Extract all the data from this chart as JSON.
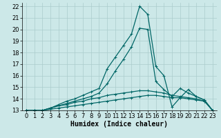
{
  "xlabel": "Humidex (Indice chaleur)",
  "background_color": "#cce8e8",
  "grid_color": "#aacccc",
  "line_color": "#006666",
  "xlim": [
    -0.5,
    23.5
  ],
  "ylim": [
    13,
    22.3
  ],
  "yticks": [
    13,
    14,
    15,
    16,
    17,
    18,
    19,
    20,
    21,
    22
  ],
  "xticks": [
    0,
    1,
    2,
    3,
    4,
    5,
    6,
    7,
    8,
    9,
    10,
    11,
    12,
    13,
    14,
    15,
    16,
    17,
    18,
    19,
    20,
    21,
    22,
    23
  ],
  "curves": [
    {
      "x": [
        0,
        1,
        2,
        3,
        4,
        5,
        6,
        7,
        8,
        9,
        10,
        11,
        12,
        13,
        14,
        15,
        16,
        17,
        18,
        19,
        20,
        21,
        22,
        23
      ],
      "y": [
        13,
        13,
        13,
        13.1,
        13.2,
        13.3,
        13.4,
        13.5,
        13.6,
        13.7,
        13.8,
        13.9,
        14.0,
        14.1,
        14.2,
        14.3,
        14.3,
        14.2,
        14.1,
        14.1,
        14.0,
        13.9,
        13.8,
        13.0
      ]
    },
    {
      "x": [
        0,
        1,
        2,
        3,
        4,
        5,
        6,
        7,
        8,
        9,
        10,
        11,
        12,
        13,
        14,
        15,
        16,
        17,
        18,
        19,
        20,
        21,
        22,
        23
      ],
      "y": [
        13,
        13,
        13,
        13.2,
        13.4,
        13.5,
        13.7,
        13.8,
        14.0,
        14.1,
        14.3,
        14.4,
        14.5,
        14.6,
        14.7,
        14.7,
        14.6,
        14.5,
        14.3,
        14.2,
        14.1,
        14.0,
        13.8,
        13.0
      ]
    },
    {
      "x": [
        0,
        1,
        2,
        3,
        4,
        5,
        6,
        7,
        8,
        9,
        10,
        11,
        12,
        13,
        14,
        15,
        16,
        17,
        18,
        19,
        20,
        21,
        22,
        23
      ],
      "y": [
        13,
        13,
        13,
        13.2,
        13.4,
        13.6,
        13.8,
        14.0,
        14.2,
        14.5,
        15.3,
        16.4,
        17.4,
        18.5,
        20.1,
        20.0,
        15.5,
        14.8,
        14.2,
        14.9,
        14.5,
        14.2,
        13.9,
        13.0
      ]
    },
    {
      "x": [
        0,
        1,
        2,
        3,
        4,
        5,
        6,
        7,
        8,
        9,
        10,
        11,
        12,
        13,
        14,
        15,
        16,
        17,
        18,
        19,
        20,
        21,
        22,
        23
      ],
      "y": [
        13,
        13,
        13,
        13.2,
        13.5,
        13.8,
        14.0,
        14.3,
        14.6,
        14.9,
        16.6,
        17.6,
        18.6,
        19.6,
        22.0,
        21.3,
        16.8,
        16.0,
        13.3,
        14.1,
        14.8,
        14.2,
        13.9,
        13.0
      ]
    }
  ],
  "marker": "+",
  "markersize": 3,
  "linewidth": 0.9,
  "xlabel_fontsize": 7,
  "tick_fontsize": 6
}
